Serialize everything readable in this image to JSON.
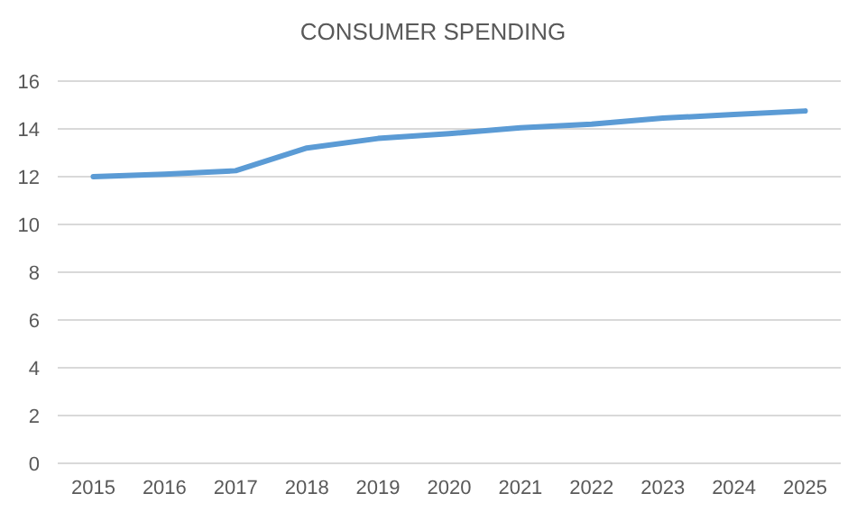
{
  "chart_data": {
    "type": "line",
    "title": "CONSUMER SPENDING",
    "categories": [
      "2015",
      "2016",
      "2017",
      "2018",
      "2019",
      "2020",
      "2021",
      "2022",
      "2023",
      "2024",
      "2025"
    ],
    "series": [
      {
        "color": "#5b9bd5",
        "values": [
          12.0,
          12.1,
          12.25,
          13.2,
          13.6,
          13.8,
          14.05,
          14.2,
          14.45,
          14.6,
          14.75
        ]
      }
    ],
    "ylim": [
      0,
      16
    ],
    "yticks": [
      0,
      2,
      4,
      6,
      8,
      10,
      12,
      14,
      16
    ],
    "grid": "y",
    "marker": "none",
    "line_style": "solid"
  }
}
